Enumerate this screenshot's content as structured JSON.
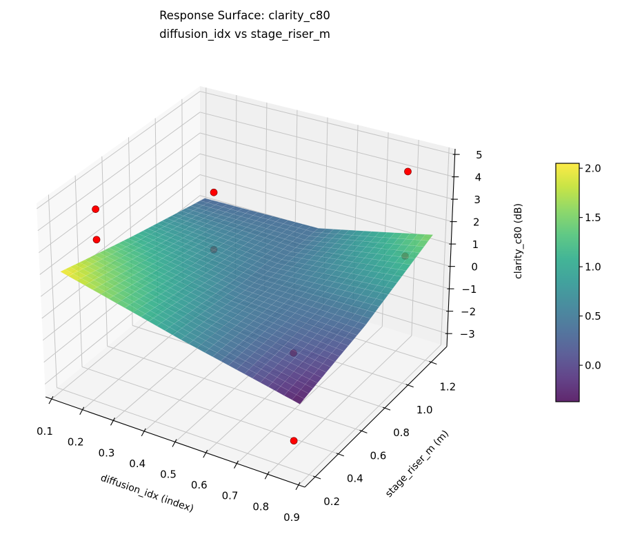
{
  "chart_data": {
    "type": "surface3d",
    "title": "Response Surface: clarity_c80",
    "subtitle": "diffusion_idx vs stage_riser_m",
    "xlabel": "diffusion_idx (index)",
    "ylabel": "stage_riser_m (m)",
    "zlabel": "clarity_c80 (dB)",
    "xlim": [
      0.08,
      0.92
    ],
    "ylim": [
      0.11,
      1.335
    ],
    "zlim": [
      -3.58,
      5.25
    ],
    "xticks": [
      0.1,
      0.2,
      0.3,
      0.4,
      0.5,
      0.6,
      0.7,
      0.8,
      0.9
    ],
    "yticks": [
      0.2,
      0.4,
      0.6,
      0.8,
      1.0,
      1.2
    ],
    "zticks": [
      -3,
      -2,
      -1,
      0,
      1,
      2,
      3,
      4,
      5
    ],
    "xtick_labels": [
      "0.1",
      "0.2",
      "0.3",
      "0.4",
      "0.5",
      "0.6",
      "0.7",
      "0.8",
      "0.9"
    ],
    "ytick_labels": [
      "0.2",
      "0.4",
      "0.6",
      "0.8",
      "1.0",
      "1.2"
    ],
    "ztick_labels": [
      "−3",
      "−2",
      "−1",
      "0",
      "1",
      "2",
      "3",
      "4",
      "5"
    ],
    "grid": true,
    "colormap": "viridis",
    "surface": {
      "x": [
        0.12,
        0.5,
        0.88
      ],
      "y": [
        0.17,
        0.72,
        1.28
      ],
      "z": [
        [
          2.05,
          0.75,
          -0.37
        ],
        [
          1.15,
          0.45,
          0.35
        ],
        [
          0.3,
          0.4,
          1.55
        ]
      ],
      "alpha": 0.85
    },
    "scatter": {
      "color": "#ff0000",
      "points": [
        {
          "x": 0.15,
          "y": 0.38,
          "z": 4.1
        },
        {
          "x": 0.15,
          "y": 0.38,
          "z": 2.7
        },
        {
          "x": 0.18,
          "y": 1.21,
          "z": 1.15
        },
        {
          "x": 0.18,
          "y": 1.21,
          "z": -1.56
        },
        {
          "x": 0.84,
          "y": 1.15,
          "z": 4.9
        },
        {
          "x": 0.84,
          "y": 1.15,
          "z": 1.1
        },
        {
          "x": 0.67,
          "y": 0.66,
          "z": -1.5
        },
        {
          "x": 0.85,
          "y": 0.2,
          "z": -2.3
        }
      ]
    },
    "colorbar": {
      "range": [
        -0.37,
        2.05
      ],
      "ticks": [
        0.0,
        0.5,
        1.0,
        1.5,
        2.0
      ],
      "tick_labels": [
        "0.0",
        "0.5",
        "1.0",
        "1.5",
        "2.0"
      ]
    }
  }
}
